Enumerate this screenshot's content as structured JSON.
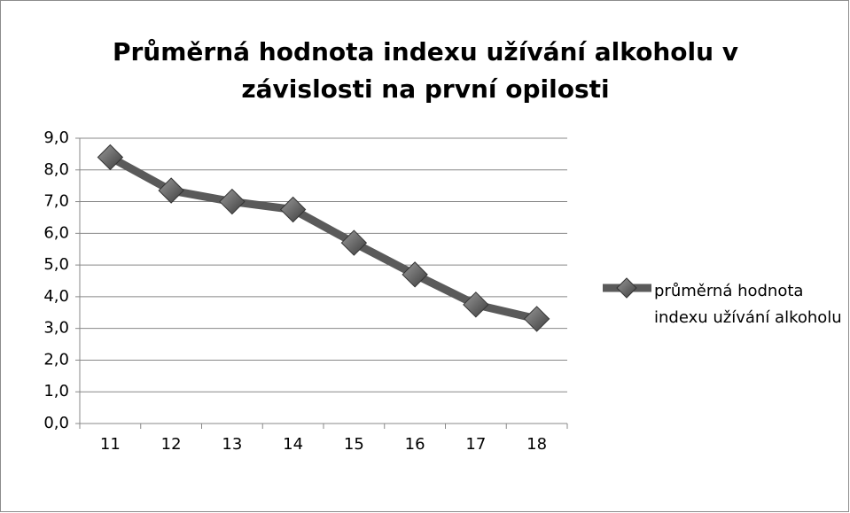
{
  "chart_data": {
    "type": "line",
    "title": "Průměrná hodnota indexu užívání alkoholu v závislosti na první opilosti",
    "categories": [
      "11",
      "12",
      "13",
      "14",
      "15",
      "16",
      "17",
      "18"
    ],
    "series": [
      {
        "name": "průměrná hodnota indexu užívání alkoholu",
        "color": "#5a5a5a",
        "values": [
          8.4,
          7.35,
          7.0,
          6.75,
          5.7,
          4.7,
          3.75,
          3.3
        ]
      }
    ],
    "ylim": [
      0,
      9
    ],
    "yticks": [
      {
        "value": 0,
        "label": "0,0"
      },
      {
        "value": 1,
        "label": "1,0"
      },
      {
        "value": 2,
        "label": "2,0"
      },
      {
        "value": 3,
        "label": "3,0"
      },
      {
        "value": 4,
        "label": "4,0"
      },
      {
        "value": 5,
        "label": "5,0"
      },
      {
        "value": 6,
        "label": "6,0"
      },
      {
        "value": 7,
        "label": "7,0"
      },
      {
        "value": 8,
        "label": "8,0"
      },
      {
        "value": 9,
        "label": "9,0"
      }
    ],
    "grid": true,
    "legend": "right"
  }
}
